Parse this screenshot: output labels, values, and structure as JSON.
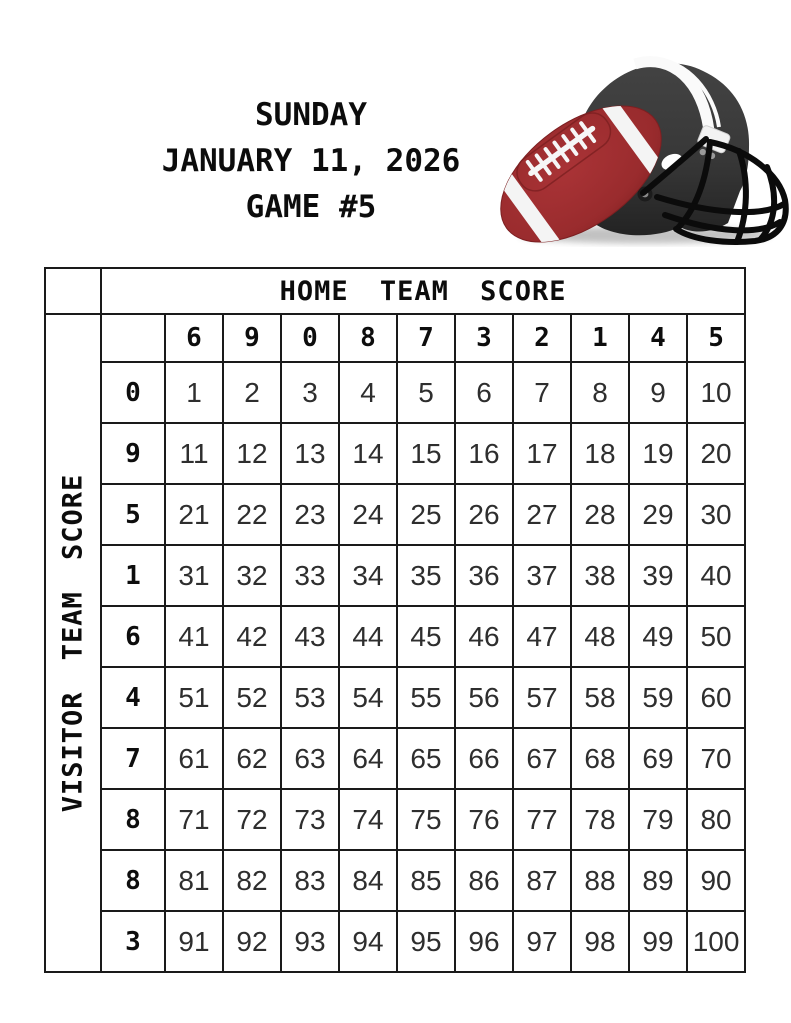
{
  "header": {
    "day": "SUNDAY",
    "date": "JANUARY 11, 2026",
    "game": "GAME #5"
  },
  "illustration": {
    "name": "football-and-helmet",
    "helmet_color": "#3a3a3a",
    "football_color": "#9c2b2c",
    "stripe_color": "#fafafa"
  },
  "grid": {
    "home_axis_label": "HOME TEAM SCORE",
    "visitor_axis_label": "VISITOR TEAM SCORE",
    "home_digits": [
      "6",
      "9",
      "0",
      "8",
      "7",
      "3",
      "2",
      "1",
      "4",
      "5"
    ],
    "visitor_digits": [
      "0",
      "9",
      "5",
      "1",
      "6",
      "4",
      "7",
      "8",
      "8",
      "3"
    ],
    "rows": [
      [
        1,
        2,
        3,
        4,
        5,
        6,
        7,
        8,
        9,
        10
      ],
      [
        11,
        12,
        13,
        14,
        15,
        16,
        17,
        18,
        19,
        20
      ],
      [
        21,
        22,
        23,
        24,
        25,
        26,
        27,
        28,
        29,
        30
      ],
      [
        31,
        32,
        33,
        34,
        35,
        36,
        37,
        38,
        39,
        40
      ],
      [
        41,
        42,
        43,
        44,
        45,
        46,
        47,
        48,
        49,
        50
      ],
      [
        51,
        52,
        53,
        54,
        55,
        56,
        57,
        58,
        59,
        60
      ],
      [
        61,
        62,
        63,
        64,
        65,
        66,
        67,
        68,
        69,
        70
      ],
      [
        71,
        72,
        73,
        74,
        75,
        76,
        77,
        78,
        79,
        80
      ],
      [
        81,
        82,
        83,
        84,
        85,
        86,
        87,
        88,
        89,
        90
      ],
      [
        91,
        92,
        93,
        94,
        95,
        96,
        97,
        98,
        99,
        100
      ]
    ],
    "cell_background": "#d9d9d9",
    "border_color": "#1a1a1a"
  }
}
